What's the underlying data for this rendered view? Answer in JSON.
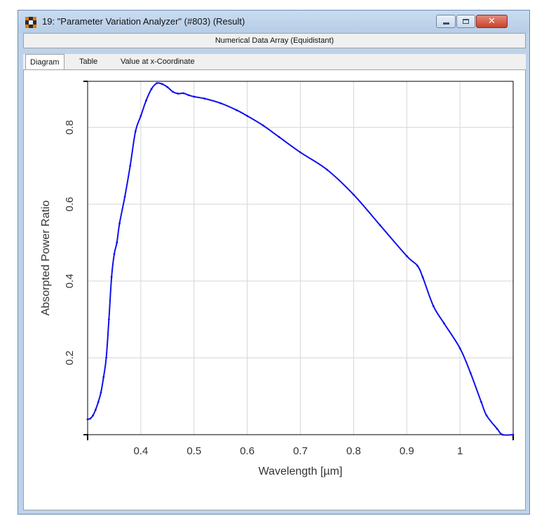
{
  "window": {
    "title": "19: \"Parameter Variation Analyzer\" (#803) (Result)",
    "subheader": "Numerical Data Array (Equidistant)",
    "controls": {
      "minimize_icon": "minimize-icon",
      "maximize_icon": "maximize-icon",
      "close_icon": "close-icon",
      "close_glyph": "✕"
    }
  },
  "tabs": [
    {
      "label": "Diagram",
      "active": true
    },
    {
      "label": "Table",
      "active": false
    },
    {
      "label": "Value at x-Coordinate",
      "active": false
    }
  ],
  "colors": {
    "series": "#1010ee",
    "grid": "#d6d6d6"
  },
  "chart_data": {
    "type": "line",
    "title": "",
    "xlabel": "Wavelength [µm]",
    "ylabel": "Absorpted Power Ratio",
    "xlim": [
      0.3,
      1.1
    ],
    "ylim": [
      0,
      0.92
    ],
    "xticks": [
      0.4,
      0.5,
      0.6,
      0.7,
      0.8,
      0.9,
      1.0
    ],
    "xtick_labels": [
      "0.4",
      "0.5",
      "0.6",
      "0.7",
      "0.8",
      "0.9",
      "1"
    ],
    "yticks": [
      0.2,
      0.4,
      0.6,
      0.8
    ],
    "ytick_labels": [
      "0.2",
      "0.4",
      "0.6",
      "0.8"
    ],
    "grid": true,
    "series": [
      {
        "x": [
          0.3,
          0.305,
          0.31,
          0.315,
          0.32,
          0.325,
          0.33,
          0.335,
          0.34,
          0.345,
          0.35,
          0.355,
          0.36,
          0.37,
          0.38,
          0.39,
          0.4,
          0.41,
          0.42,
          0.43,
          0.44,
          0.45,
          0.46,
          0.47,
          0.48,
          0.49,
          0.5,
          0.52,
          0.55,
          0.58,
          0.6,
          0.63,
          0.66,
          0.7,
          0.75,
          0.8,
          0.85,
          0.9,
          0.92,
          0.93,
          0.95,
          0.97,
          1.0,
          1.02,
          1.04,
          1.05,
          1.07,
          1.08,
          1.1
        ],
        "y": [
          0.04,
          0.042,
          0.05,
          0.065,
          0.085,
          0.11,
          0.15,
          0.2,
          0.3,
          0.41,
          0.47,
          0.5,
          0.55,
          0.62,
          0.7,
          0.79,
          0.83,
          0.87,
          0.9,
          0.915,
          0.913,
          0.905,
          0.893,
          0.888,
          0.889,
          0.884,
          0.88,
          0.875,
          0.863,
          0.845,
          0.83,
          0.805,
          0.775,
          0.735,
          0.69,
          0.625,
          0.545,
          0.465,
          0.44,
          0.41,
          0.335,
          0.29,
          0.225,
          0.16,
          0.085,
          0.05,
          0.015,
          0.0,
          0.0
        ]
      }
    ]
  }
}
